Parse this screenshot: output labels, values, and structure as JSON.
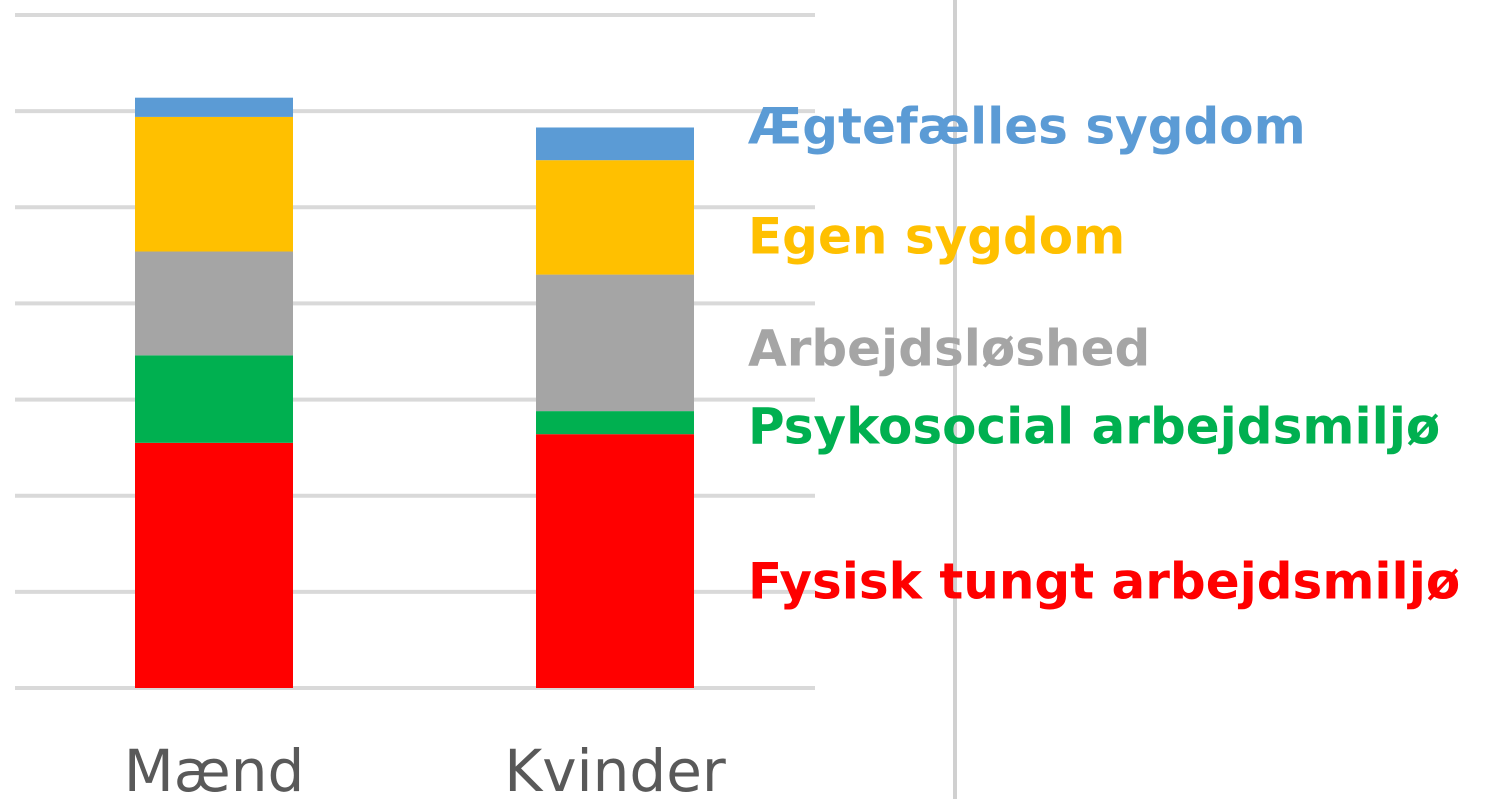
{
  "chart_data": {
    "type": "bar",
    "stacked": true,
    "categories": [
      "Mænd",
      "Kvinder"
    ],
    "series": [
      {
        "name": "Fysisk tungt arbejdsmiljø",
        "color": "#ff0000",
        "values": [
          2.55,
          2.64
        ]
      },
      {
        "name": "Psykosocial arbejdsmiljø",
        "color": "#00b050",
        "values": [
          0.91,
          0.24
        ]
      },
      {
        "name": "Arbejdsløshed",
        "color": "#a5a5a5",
        "values": [
          1.08,
          1.42
        ]
      },
      {
        "name": "Egen sygdom",
        "color": "#ffc000",
        "values": [
          1.4,
          1.19
        ]
      },
      {
        "name": "Ægtefælles sygdom",
        "color": "#5b9bd5",
        "values": [
          0.2,
          0.34
        ]
      }
    ],
    "ylim": [
      0,
      7
    ],
    "yticks": [
      0,
      1,
      2,
      3,
      4,
      5,
      6,
      7
    ],
    "grid": true
  }
}
